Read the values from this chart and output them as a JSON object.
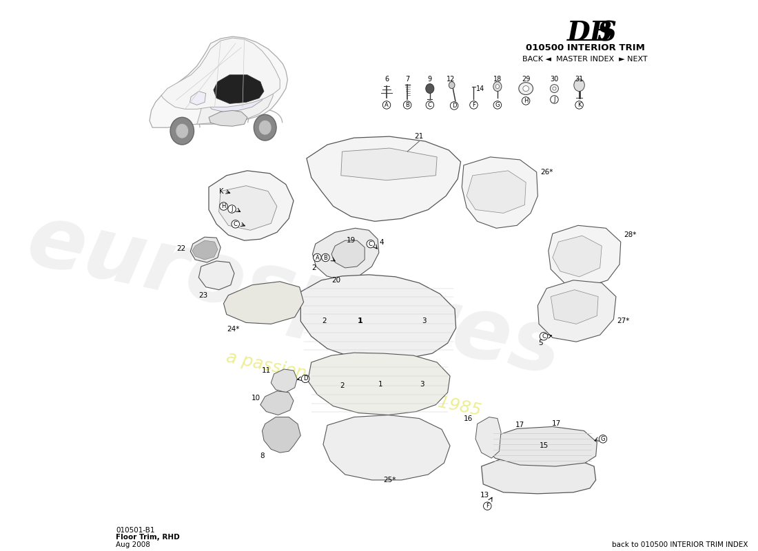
{
  "title_dbs": "DBS",
  "title_section": "010500 INTERIOR TRIM",
  "nav_text": "BACK ◄  MASTER INDEX  ► NEXT",
  "diagram_id": "010501-B1",
  "diagram_name": "Floor Trim, RHD",
  "diagram_date": "Aug 2008",
  "footer_text": "back to 010500 INTERIOR TRIM INDEX",
  "bg_color": "#ffffff",
  "line_color": "#555555",
  "label_color": "#000000"
}
